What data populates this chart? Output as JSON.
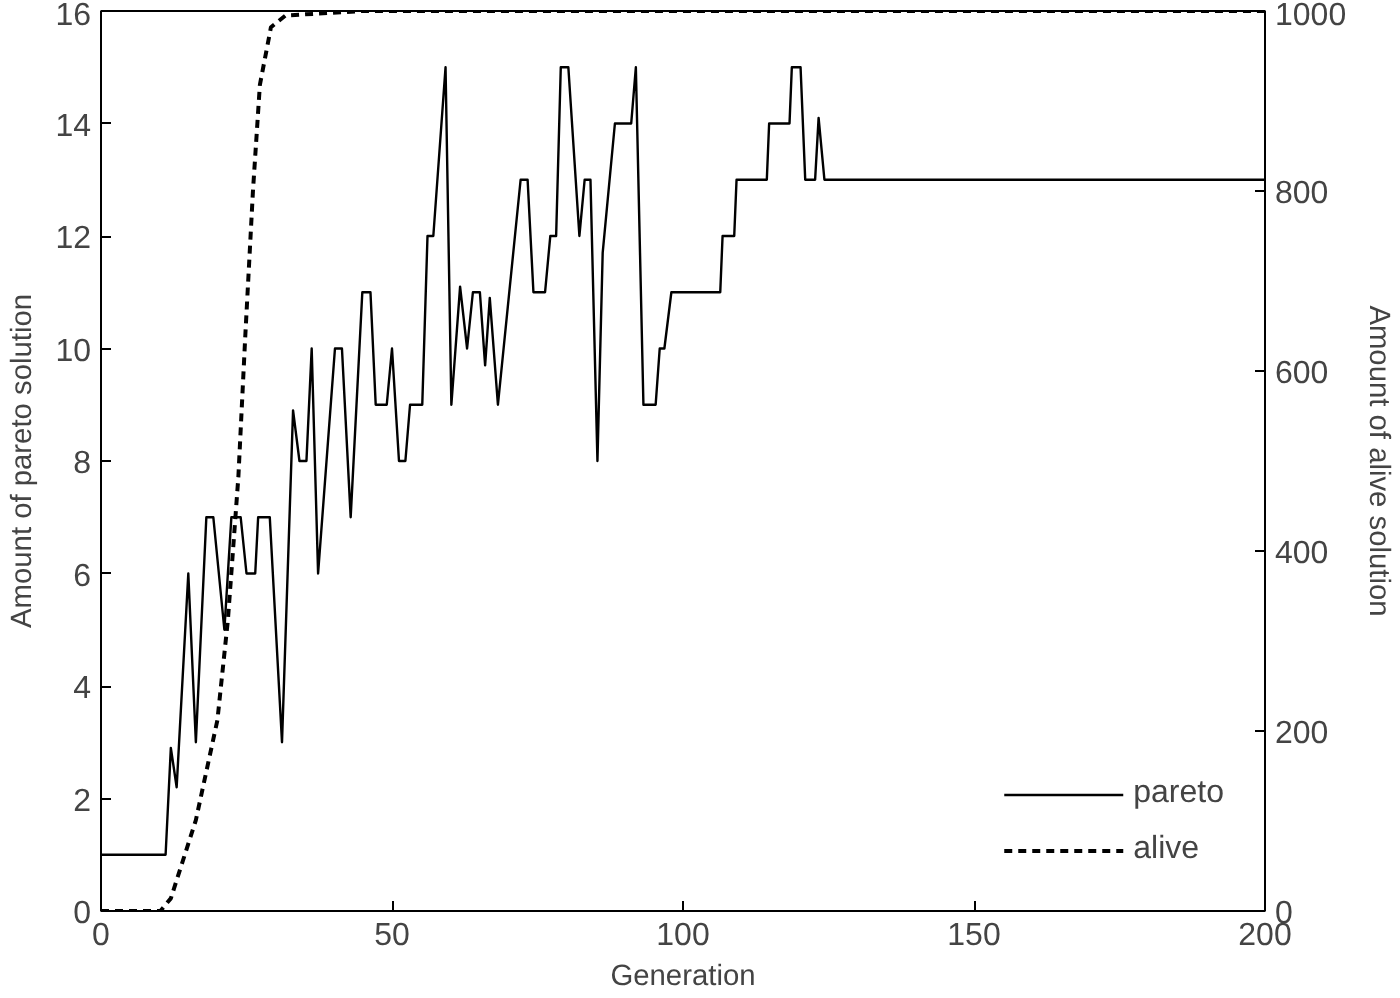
{
  "chart_data": {
    "type": "line",
    "xlabel": "Generation",
    "ylabel": "Amount of pareto solution",
    "y2label": "Amount of alive solution",
    "xlim": [
      0,
      200
    ],
    "xticks": [
      0,
      50,
      100,
      150,
      200
    ],
    "ylim": [
      0,
      16
    ],
    "yticks": [
      0,
      2,
      4,
      6,
      8,
      10,
      12,
      14,
      16
    ],
    "y2lim": [
      0,
      1000
    ],
    "y2ticks": [
      0,
      200,
      400,
      600,
      800,
      1000
    ],
    "grid": false,
    "legend": "bottom right",
    "marker": "none",
    "series": [
      {
        "name": "pareto",
        "color": "#000000",
        "line_style": "solid",
        "x": [
          0,
          11.1,
          12,
          13,
          15,
          16.3,
          18.1,
          19.3,
          21.2,
          22.4,
          24,
          25,
          26.5,
          27,
          29,
          31.1,
          33,
          34.1,
          35.3,
          36.2,
          37.3,
          40.2,
          41.4,
          42.9,
          44.9,
          46.3,
          47.2,
          49.1,
          50,
          51.2,
          52.3,
          53.1,
          55.2,
          56.1,
          57.1,
          59.2,
          60.2,
          61.7,
          62.9,
          63.9,
          65.1,
          66,
          66.8,
          68.2,
          72.1,
          73.3,
          74.3,
          76.3,
          77.2,
          78.2,
          79,
          80.3,
          82.2,
          83.1,
          84.1,
          85.3,
          86.2,
          88.3,
          91.1,
          91.9,
          93.2,
          95.3,
          96,
          96.8,
          98,
          106.4,
          106.8,
          108.8,
          109.2,
          114.4,
          114.8,
          118.3,
          118.7,
          120.2,
          121,
          122.7,
          123.3,
          124.3,
          200
        ],
        "values": [
          1,
          1,
          2.9,
          2.2,
          6,
          3,
          7,
          7,
          5,
          7,
          7,
          6,
          6,
          7,
          7,
          3,
          8.9,
          8,
          8,
          10,
          6,
          10,
          10,
          7,
          11,
          11,
          9,
          9,
          10,
          8,
          8,
          9,
          9,
          12,
          12,
          15,
          9,
          11.1,
          10,
          11,
          11,
          9.7,
          10.9,
          9,
          13,
          13,
          11,
          11,
          12,
          12,
          15,
          15,
          12,
          13,
          13,
          8,
          11.7,
          14,
          14,
          15,
          9,
          9,
          10,
          10,
          11,
          11,
          12,
          12,
          13,
          13,
          14,
          14,
          15,
          15,
          13,
          13,
          14.1,
          13,
          13
        ]
      },
      {
        "name": "alive",
        "color": "#000000",
        "line_style": "dashed",
        "axis": "y2",
        "x": [
          0,
          10.2,
          12,
          16.3,
          20,
          21.8,
          23.6,
          24.8,
          26.1,
          27.3,
          29.2,
          31.7,
          45,
          200
        ],
        "values": [
          0,
          0,
          14,
          101,
          212,
          323,
          482,
          640,
          799,
          918,
          982,
          995,
          1000,
          1000
        ]
      }
    ]
  }
}
